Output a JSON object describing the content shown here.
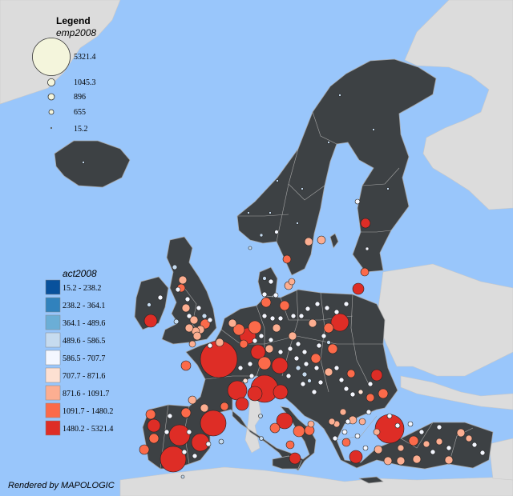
{
  "legend": {
    "title": "Legend",
    "size_variable": "emp2008",
    "size_classes": [
      "5321.4",
      "1045.3",
      "896",
      "655",
      "15.2"
    ],
    "color_variable": "act2008",
    "color_classes": [
      {
        "label": "15.2 - 238.2",
        "color": "#08519c"
      },
      {
        "label": "238.2 - 364.1",
        "color": "#3182bd"
      },
      {
        "label": "364.1 - 489.6",
        "color": "#6baed6"
      },
      {
        "label": "489.6 - 586.5",
        "color": "#c6dbef"
      },
      {
        "label": "586.5 - 707.7",
        "color": "#f4f7ff"
      },
      {
        "label": "707.7 - 871.6",
        "color": "#fde0d2"
      },
      {
        "label": "871.6 - 1091.7",
        "color": "#fcae91"
      },
      {
        "label": "1091.7 - 1480.2",
        "color": "#fb6a4a"
      },
      {
        "label": "1480.2 - 5321.4",
        "color": "#de2d26"
      }
    ]
  },
  "credit": "Rendered by MAPOLOGIC",
  "colors": {
    "sea": "#99c6fb",
    "land_study": "#3d4144",
    "land_other": "#dcdcdc",
    "border": "#a6a6a6"
  }
}
